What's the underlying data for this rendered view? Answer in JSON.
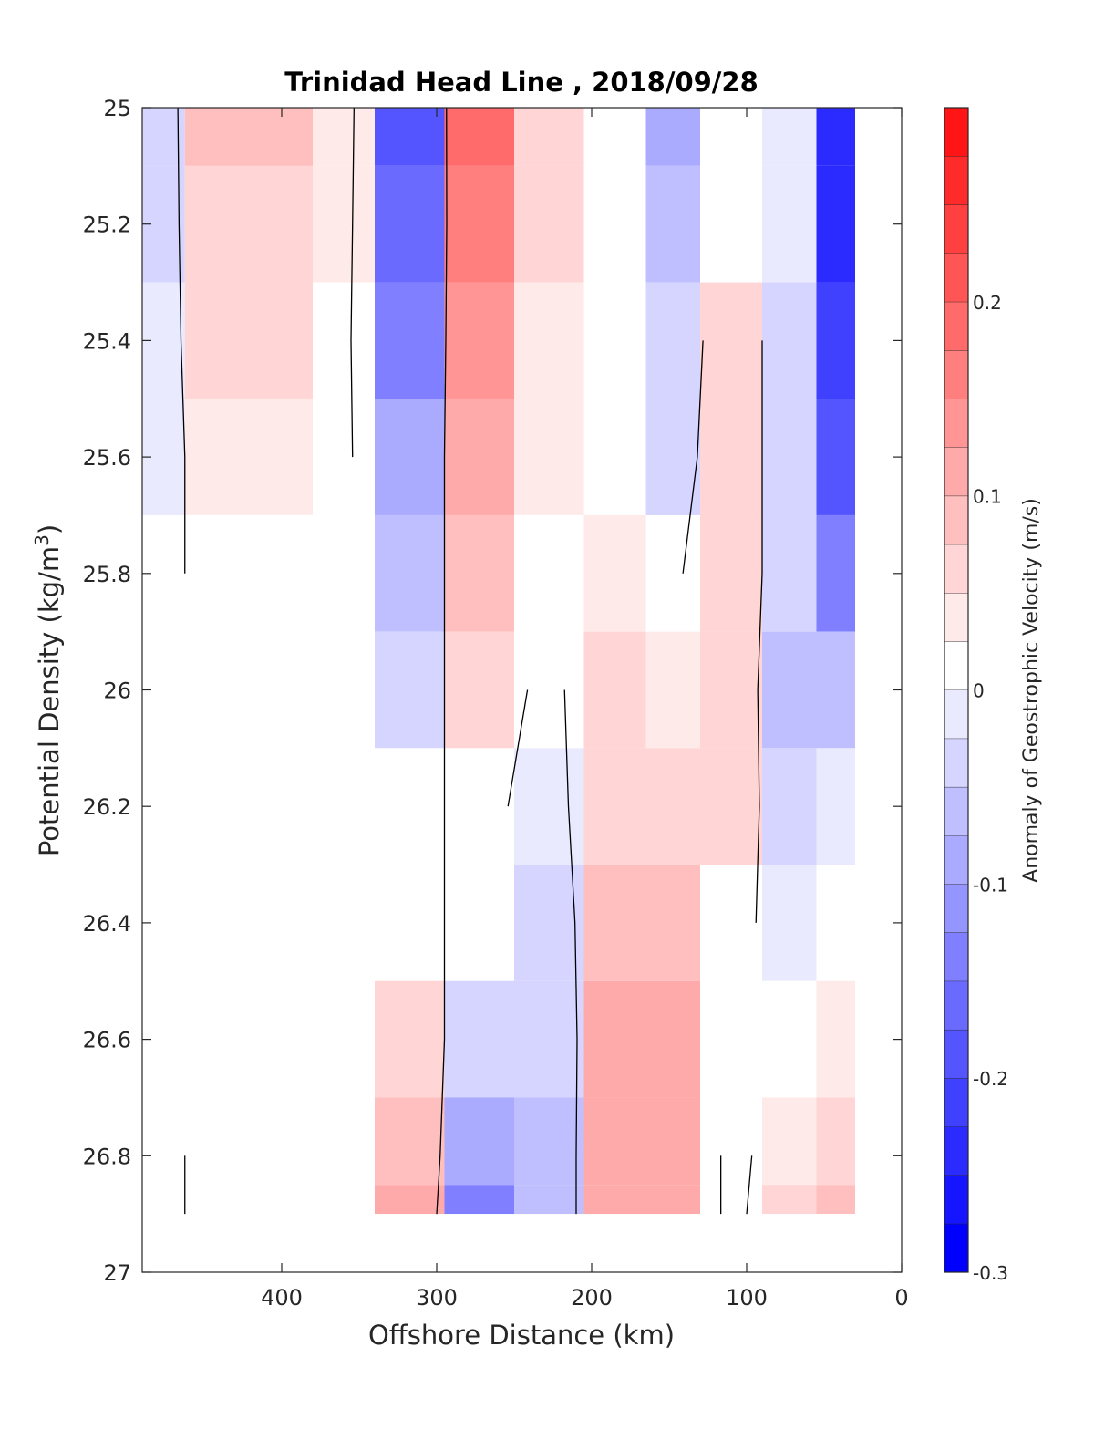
{
  "chart_data": {
    "type": "heatmap",
    "title": "Trinidad Head Line , 2018/09/28",
    "xlabel": "Offshore Distance (km)",
    "ylabel_main": "Potential Density (kg/m",
    "ylabel_sup": "3",
    "ylabel_close": ")",
    "xlim": [
      490,
      0
    ],
    "x_reversed": true,
    "ylim": [
      25,
      27
    ],
    "y_reversed": true,
    "x_ticks": [
      400,
      300,
      200,
      100,
      0
    ],
    "x_tick_labels": [
      "400",
      "300",
      "200",
      "100",
      "0"
    ],
    "y_ticks": [
      25,
      25.2,
      25.4,
      25.6,
      25.8,
      26,
      26.2,
      26.4,
      26.6,
      26.8,
      27
    ],
    "y_tick_labels": [
      "25",
      "25.2",
      "25.4",
      "25.6",
      "25.8",
      "26",
      "26.2",
      "26.4",
      "26.6",
      "26.8",
      "27"
    ],
    "colorbar": {
      "label": "Anomaly of Geostrophic Velocity (m/s)",
      "range": [
        -0.3,
        0.3
      ],
      "step": 0.025,
      "ticks": [
        -0.3,
        -0.2,
        -0.1,
        0,
        0.1,
        0.2
      ],
      "tick_labels": [
        "-0.3",
        "-0.2",
        "-0.1",
        "0",
        "0.1",
        "0.2"
      ],
      "negative_color": "#0000ff",
      "positive_color": "#ff0000",
      "zero_color": "#ffffff"
    },
    "series": [
      {
        "x": 485,
        "values": [
          -0.06,
          -0.05,
          -0.04,
          -0.04,
          -0.02,
          0.0,
          0.0,
          0.0,
          0.0,
          0.02,
          0.02
        ]
      },
      {
        "x": 440,
        "values": [
          0.09,
          0.07,
          0.05,
          0.04,
          0.02,
          0.0,
          0.0,
          0.0,
          -0.02,
          -0.02,
          -0.02
        ]
      },
      {
        "x": 400,
        "values": [
          0.08,
          0.06,
          0.05,
          0.04,
          0.02,
          0.0,
          0.0,
          0.0,
          -0.02,
          -0.02,
          -0.02
        ]
      },
      {
        "x": 360,
        "values": [
          0.04,
          0.03,
          0.02,
          0.02,
          0.0,
          0.0,
          0.0,
          0.0,
          0.0,
          0.0,
          0.0
        ]
      },
      {
        "x": 320,
        "values": [
          -0.2,
          -0.18,
          -0.15,
          -0.12,
          -0.08,
          -0.05,
          -0.02,
          0.02,
          0.06,
          0.08,
          0.1
        ]
      },
      {
        "x": 270,
        "values": [
          0.18,
          0.16,
          0.14,
          0.12,
          0.08,
          0.05,
          0.02,
          -0.02,
          -0.06,
          -0.1,
          -0.15
        ]
      },
      {
        "x": 230,
        "values": [
          0.07,
          0.05,
          0.04,
          0.03,
          0.0,
          -0.02,
          -0.03,
          -0.05,
          -0.07,
          -0.08,
          -0.08
        ]
      },
      {
        "x": 180,
        "values": [
          0.0,
          0.0,
          0.0,
          0.0,
          0.04,
          0.06,
          0.07,
          0.08,
          0.1,
          0.12,
          0.12
        ]
      },
      {
        "x": 150,
        "values": [
          -0.12,
          -0.08,
          -0.06,
          -0.05,
          -0.02,
          0.03,
          0.06,
          0.08,
          0.1,
          0.1,
          0.1
        ]
      },
      {
        "x": 110,
        "values": [
          0.0,
          0.0,
          0.05,
          0.06,
          0.07,
          0.06,
          0.05,
          0.02,
          0.0,
          -0.02,
          -0.02
        ]
      },
      {
        "x": 70,
        "values": [
          -0.04,
          -0.04,
          -0.05,
          -0.06,
          -0.07,
          -0.08,
          -0.06,
          -0.03,
          0.0,
          0.04,
          0.06
        ]
      },
      {
        "x": 40,
        "values": [
          -0.27,
          -0.27,
          -0.24,
          -0.2,
          -0.15,
          -0.08,
          -0.03,
          0.0,
          0.03,
          0.06,
          0.08
        ]
      }
    ],
    "series_y": [
      25.0,
      25.2,
      25.4,
      25.6,
      25.8,
      26.0,
      26.2,
      26.4,
      26.6,
      26.8,
      26.9
    ]
  }
}
